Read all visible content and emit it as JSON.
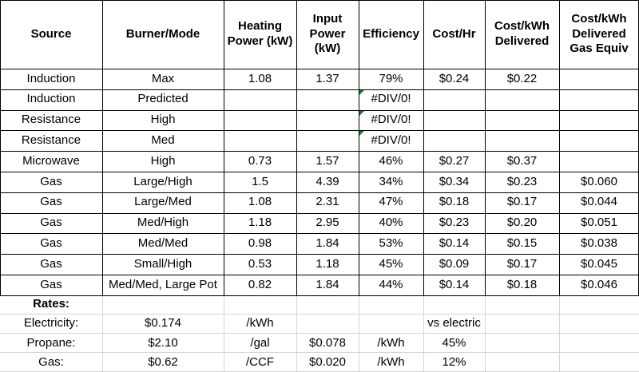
{
  "header": {
    "source": "Source",
    "burner_mode": "Burner/Mode",
    "heating_power": "Heating Power (kW)",
    "input_power": "Input Power (kW)",
    "efficiency": "Efficiency",
    "cost_hr": "Cost/Hr",
    "cost_kwh_delivered": "Cost/kWh Delivered",
    "cost_kwh_gas_equiv": "Cost/kWh Delivered Gas Equiv"
  },
  "rows": [
    [
      "Induction",
      "Max",
      "1.08",
      "1.37",
      "79%",
      "$0.24",
      "$0.22",
      ""
    ],
    [
      "Induction",
      "Predicted",
      "",
      "",
      "#DIV/0!",
      "",
      "",
      ""
    ],
    [
      "Resistance",
      "High",
      "",
      "",
      "#DIV/0!",
      "",
      "",
      ""
    ],
    [
      "Resistance",
      "Med",
      "",
      "",
      "#DIV/0!",
      "",
      "",
      ""
    ],
    [
      "Microwave",
      "High",
      "0.73",
      "1.57",
      "46%",
      "$0.27",
      "$0.37",
      ""
    ],
    [
      "Gas",
      "Large/High",
      "1.5",
      "4.39",
      "34%",
      "$0.34",
      "$0.23",
      "$0.060"
    ],
    [
      "Gas",
      "Large/Med",
      "1.08",
      "2.31",
      "47%",
      "$0.18",
      "$0.17",
      "$0.044"
    ],
    [
      "Gas",
      "Med/High",
      "1.18",
      "2.95",
      "40%",
      "$0.23",
      "$0.20",
      "$0.051"
    ],
    [
      "Gas",
      "Med/Med",
      "0.98",
      "1.84",
      "53%",
      "$0.14",
      "$0.15",
      "$0.038"
    ],
    [
      "Gas",
      "Small/High",
      "0.53",
      "1.18",
      "45%",
      "$0.09",
      "$0.17",
      "$0.045"
    ],
    [
      "Gas",
      "Med/Med, Large Pot",
      "0.82",
      "1.84",
      "44%",
      "$0.14",
      "$0.18",
      "$0.046"
    ]
  ],
  "rates": {
    "label": "Rates:",
    "rows": [
      [
        "Electricity:",
        "$0.174",
        "/kWh",
        "",
        "",
        "vs electric",
        "",
        ""
      ],
      [
        "Propane:",
        "$2.10",
        "/gal",
        "$0.078",
        "/kWh",
        "45%",
        "",
        ""
      ],
      [
        "Gas:",
        "$0.62",
        "/CCF",
        "$0.020",
        "/kWh",
        "12%",
        "",
        ""
      ]
    ]
  },
  "colors": {
    "error_flag": "#1f7a1f",
    "gridline": "#d4d4d4",
    "border": "#000000"
  },
  "error_flag_rows": [
    1,
    2,
    3
  ]
}
